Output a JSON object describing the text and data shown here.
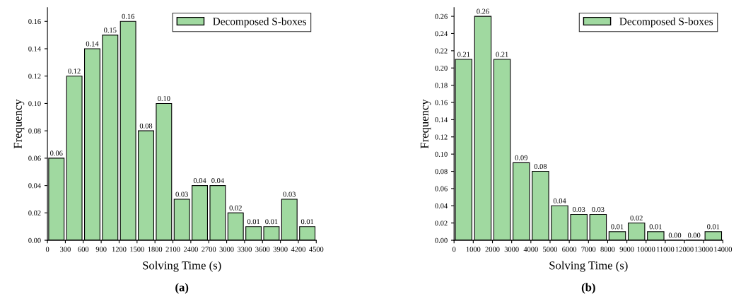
{
  "chart_data": [
    {
      "type": "histogram",
      "xlabel": "Solving Time (s)",
      "ylabel": "Frequency",
      "annotations": [
        "(a)"
      ],
      "bins": [
        0,
        300,
        600,
        900,
        1200,
        1500,
        1800,
        2100,
        2400,
        2700,
        3000,
        3300,
        3600,
        3900,
        4200,
        4500
      ],
      "series": [
        {
          "name": "Decomposed S-boxes",
          "color": "#a0d9a0",
          "values": [
            0.06,
            0.12,
            0.14,
            0.15,
            0.16,
            0.08,
            0.1,
            0.03,
            0.04,
            0.04,
            0.02,
            0.01,
            0.01,
            0.03,
            0.01
          ],
          "value_labels": [
            "0.06",
            "0.12",
            "0.14",
            "0.15",
            "0.16",
            "0.08",
            "0.10",
            "0.03",
            "0.04",
            "0.04",
            "0.02",
            "0.01",
            "0.01",
            "0.03",
            "0.01"
          ]
        }
      ],
      "xlim": [
        0,
        4500
      ],
      "xticks": [
        0,
        300,
        600,
        900,
        1200,
        1500,
        1800,
        2100,
        2400,
        2700,
        3000,
        3300,
        3600,
        3900,
        4200,
        4500
      ],
      "ylim": [
        0,
        0.17
      ],
      "yticks": [
        {
          "value": 0,
          "label": "0.00"
        },
        {
          "value": 0.02,
          "label": "0.02"
        },
        {
          "value": 0.04,
          "label": "0.04"
        },
        {
          "value": 0.06,
          "label": "0.06"
        },
        {
          "value": 0.08,
          "label": "0.08"
        },
        {
          "value": 0.1,
          "label": "0.10"
        },
        {
          "value": 0.12,
          "label": "0.12"
        },
        {
          "value": 0.14,
          "label": "0.14"
        },
        {
          "value": 0.16,
          "label": "0.16"
        }
      ],
      "legend": "top right",
      "grid": false
    },
    {
      "type": "histogram",
      "xlabel": "Solving Time (s)",
      "ylabel": "Frequency",
      "annotations": [
        "(b)"
      ],
      "bins": [
        0,
        1000,
        2000,
        3000,
        4000,
        5000,
        6000,
        7000,
        8000,
        9000,
        10000,
        11000,
        12000,
        13000,
        14000
      ],
      "series": [
        {
          "name": "Decomposed S-boxes",
          "color": "#a0d9a0",
          "values": [
            0.21,
            0.26,
            0.21,
            0.09,
            0.08,
            0.04,
            0.03,
            0.03,
            0.01,
            0.02,
            0.01,
            0.0,
            0.0,
            0.01
          ],
          "value_labels": [
            "0.21",
            "0.26",
            "0.21",
            "0.09",
            "0.08",
            "0.04",
            "0.03",
            "0.03",
            "0.01",
            "0.02",
            "0.01",
            "0.00",
            "0.00",
            "0.01"
          ]
        }
      ],
      "xlim": [
        0,
        14000
      ],
      "xticks": [
        0,
        1000,
        2000,
        3000,
        4000,
        5000,
        6000,
        7000,
        8000,
        9000,
        10000,
        11000,
        12000,
        13000,
        14000
      ],
      "ylim": [
        0,
        0.27
      ],
      "yticks": [
        {
          "value": 0,
          "label": "0.00"
        },
        {
          "value": 0.02,
          "label": "0.02"
        },
        {
          "value": 0.04,
          "label": "0.04"
        },
        {
          "value": 0.06,
          "label": "0.06"
        },
        {
          "value": 0.08,
          "label": "0.08"
        },
        {
          "value": 0.1,
          "label": "0.10"
        },
        {
          "value": 0.12,
          "label": "0.12"
        },
        {
          "value": 0.14,
          "label": "0.14"
        },
        {
          "value": 0.16,
          "label": "0.16"
        },
        {
          "value": 0.18,
          "label": "0.18"
        },
        {
          "value": 0.2,
          "label": "0.20"
        },
        {
          "value": 0.22,
          "label": "0.22"
        },
        {
          "value": 0.24,
          "label": "0.24"
        },
        {
          "value": 0.26,
          "label": "0.26"
        }
      ],
      "legend": "top right",
      "grid": false
    }
  ]
}
